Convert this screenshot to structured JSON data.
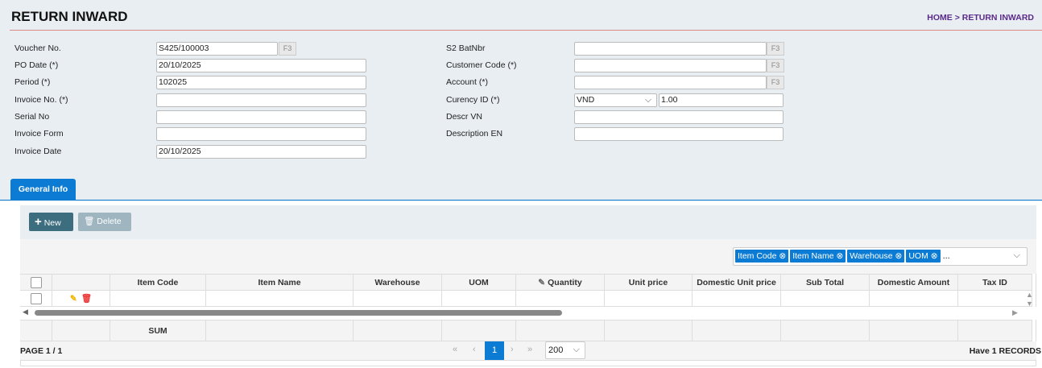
{
  "header": {
    "title": "RETURN INWARD",
    "breadcrumb": "HOME > RETURN INWARD"
  },
  "form_left": [
    {
      "label": "Voucher No.",
      "value": "S425/100003",
      "f3": "F3"
    },
    {
      "label": "PO Date (*)",
      "value": "20/10/2025"
    },
    {
      "label": "Period (*)",
      "value": "102025"
    },
    {
      "label": "Invoice No. (*)",
      "value": ""
    },
    {
      "label": "Serial No",
      "value": ""
    },
    {
      "label": "Invoice Form",
      "value": ""
    },
    {
      "label": "Invoice Date",
      "value": "20/10/2025"
    }
  ],
  "form_right": [
    {
      "label": "S2 BatNbr",
      "value": "",
      "f3": "F3"
    },
    {
      "label": "Customer Code (*)",
      "value": "",
      "f3": "F3"
    },
    {
      "label": "Account (*)",
      "value": "",
      "f3": "F3"
    },
    {
      "label": "Curency ID (*)",
      "value": "VND",
      "rate": "1.00"
    },
    {
      "label": "Descr VN",
      "value": ""
    },
    {
      "label": "Description EN",
      "value": ""
    }
  ],
  "tabs": [
    {
      "label": "General Info",
      "active": true
    }
  ],
  "toolbar": {
    "new_label": "New",
    "delete_label": "Delete"
  },
  "column_chooser": {
    "tags": [
      "Item Code",
      "Item Name",
      "Warehouse",
      "UOM"
    ],
    "more": "..."
  },
  "grid": {
    "columns": [
      "",
      "",
      "Item Code",
      "Item Name",
      "Warehouse",
      "UOM",
      "Quantity",
      "Unit price",
      "Domestic Unit price",
      "Sub Total",
      "Domestic Amount",
      "Tax ID"
    ],
    "sum_label": "SUM"
  },
  "pager": {
    "page_text": "PAGE 1 / 1",
    "current_page": "1",
    "page_size": "200",
    "records": "Have 1 RECORDS"
  },
  "colors": {
    "accent": "#0b7bd4",
    "new_button": "#3c6e80",
    "delete_button": "#9fb6c1"
  }
}
